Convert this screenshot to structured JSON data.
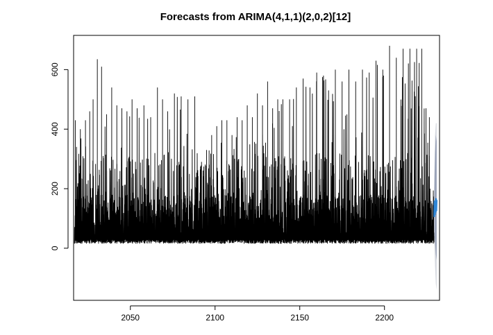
{
  "chart_data": {
    "type": "line",
    "title": "Forecasts from ARIMA(4,1,1)(2,0,2)[12]",
    "xlabel": "",
    "ylabel": "",
    "xlim": [
      2016.5,
      2232.5
    ],
    "ylim": [
      -175,
      715
    ],
    "x_ticks": [
      2050,
      2100,
      2150,
      2200
    ],
    "y_ticks": [
      0,
      200,
      400,
      600
    ],
    "grid": false,
    "legend": "none",
    "series": [
      {
        "role": "observed",
        "color": "#000000",
        "x_start": 2017,
        "x_end": 2229.4,
        "baseline_range": [
          15,
          30
        ],
        "dense_band_range": [
          40,
          180
        ],
        "peaks": [
          [
            2017.5,
            430
          ],
          [
            2020.5,
            400
          ],
          [
            2023.5,
            430
          ],
          [
            2026,
            460
          ],
          [
            2028,
            500
          ],
          [
            2030.5,
            635
          ],
          [
            2033,
            610
          ],
          [
            2036,
            450
          ],
          [
            2039,
            540
          ],
          [
            2042,
            480
          ],
          [
            2045,
            470
          ],
          [
            2048,
            460
          ],
          [
            2051,
            500
          ],
          [
            2054,
            470
          ],
          [
            2058,
            480
          ],
          [
            2062,
            440
          ],
          [
            2066,
            540
          ],
          [
            2069,
            500
          ],
          [
            2072,
            460
          ],
          [
            2076,
            520
          ],
          [
            2080,
            510
          ],
          [
            2084,
            500
          ],
          [
            2088,
            510
          ],
          [
            2092,
            290
          ],
          [
            2095,
            330
          ],
          [
            2098,
            380
          ],
          [
            2101,
            410
          ],
          [
            2104,
            430
          ],
          [
            2107,
            430
          ],
          [
            2110,
            380
          ],
          [
            2113,
            440
          ],
          [
            2116,
            430
          ],
          [
            2119,
            480
          ],
          [
            2122,
            440
          ],
          [
            2125,
            520
          ],
          [
            2128,
            480
          ],
          [
            2131,
            560
          ],
          [
            2134,
            470
          ],
          [
            2137,
            500
          ],
          [
            2140,
            500
          ],
          [
            2144,
            500
          ],
          [
            2148,
            540
          ],
          [
            2152,
            570
          ],
          [
            2156,
            540
          ],
          [
            2160,
            590
          ],
          [
            2164,
            580
          ],
          [
            2167,
            530
          ],
          [
            2171,
            600
          ],
          [
            2175,
            560
          ],
          [
            2179,
            600
          ],
          [
            2183,
            560
          ],
          [
            2187,
            600
          ],
          [
            2191,
            590
          ],
          [
            2195,
            630
          ],
          [
            2199,
            600
          ],
          [
            2203,
            680
          ],
          [
            2207,
            640
          ],
          [
            2211,
            670
          ],
          [
            2215,
            670
          ],
          [
            2219,
            670
          ],
          [
            2222,
            670
          ],
          [
            2224.5,
            470
          ],
          [
            2226.5,
            440
          ]
        ]
      },
      {
        "role": "forecast",
        "color": "#2f86d6",
        "x": [
          2229.4,
          2229.6,
          2229.8,
          2230.0,
          2230.2,
          2230.4,
          2230.6,
          2230.8
        ],
        "y": [
          105,
          160,
          112,
          150,
          120,
          168,
          125,
          162
        ]
      },
      {
        "role": "80% interval",
        "color": "#9aa3b8",
        "upper": [
          200,
          320,
          380,
          360
        ],
        "lower": [
          50,
          20,
          -20,
          -40
        ]
      },
      {
        "role": "95% interval",
        "color": "#d6d9e0",
        "upper": [
          240,
          380,
          420,
          420
        ],
        "lower": [
          20,
          -60,
          -120,
          -140
        ]
      }
    ]
  }
}
